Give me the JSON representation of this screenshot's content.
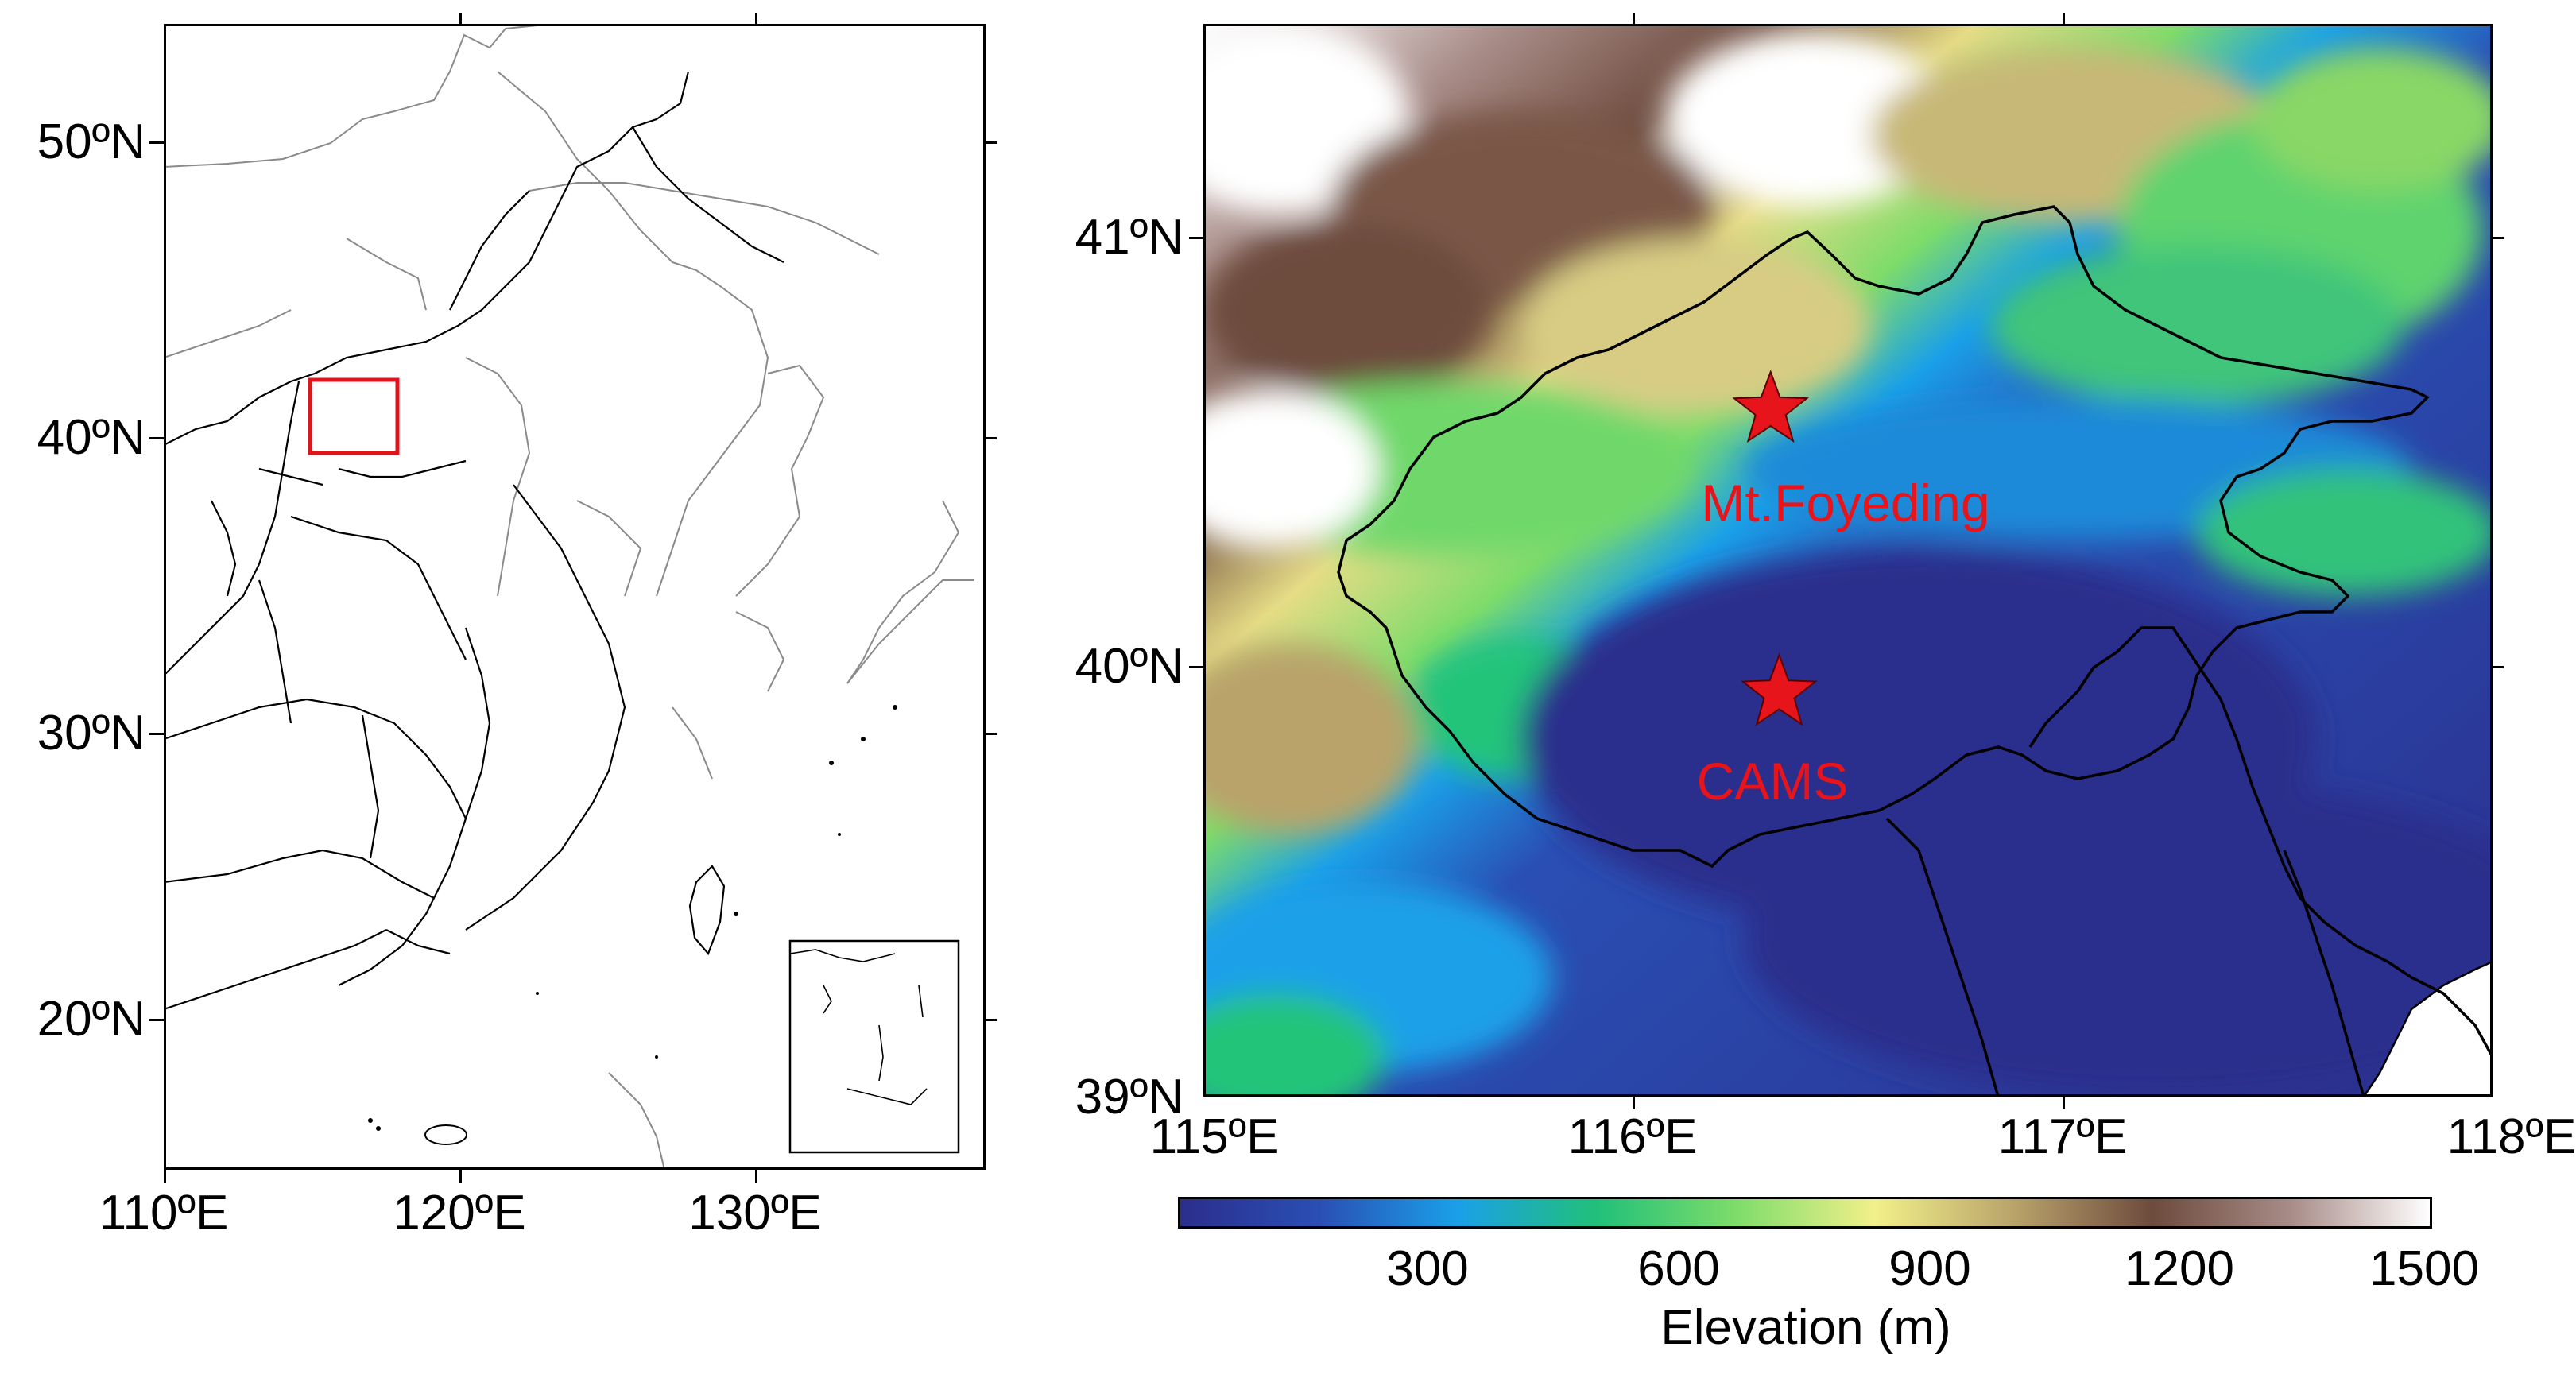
{
  "left_map": {
    "lat_labels": [
      "50ºN",
      "40ºN",
      "30ºN",
      "20ºN"
    ],
    "lon_labels": [
      "110ºE",
      "120ºE",
      "130ºE"
    ],
    "highlight_box_color": "#e0141b",
    "border_color": "#000000",
    "coastline_color": "#8a8a8a"
  },
  "right_map": {
    "lat_labels": [
      "41ºN",
      "40ºN",
      "39ºN"
    ],
    "lon_labels": [
      "115ºE",
      "116ºE",
      "117ºE",
      "118ºE"
    ],
    "sites": [
      {
        "name": "Mt.Foyeding",
        "lon": 116.32,
        "lat": 40.6,
        "marker": "star-icon"
      },
      {
        "name": "CAMS",
        "lon": 116.34,
        "lat": 39.94,
        "marker": "star-icon"
      }
    ],
    "site_color": "#e8141b"
  },
  "colorbar": {
    "title": "Elevation (m)",
    "ticks": [
      "300",
      "600",
      "900",
      "1200",
      "1500"
    ],
    "range": [
      0,
      1500
    ],
    "colors": [
      "#2b2e8c",
      "#2a4fb4",
      "#1aa0e8",
      "#20c07a",
      "#7ddc6a",
      "#f2f08a",
      "#b9a36a",
      "#6d4b3d",
      "#a88c88",
      "#ffffff"
    ]
  }
}
